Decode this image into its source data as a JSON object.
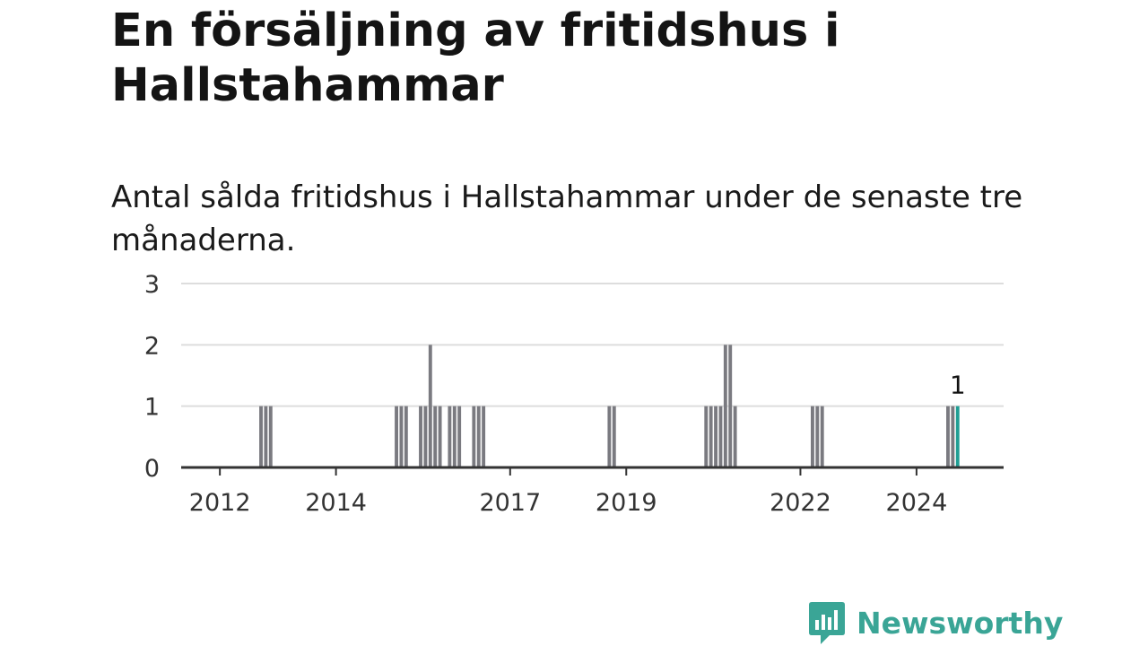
{
  "header": {
    "title": "En försäljning av fritidshus i Hallstahammar",
    "subtitle": "Antal sålda fritidshus i Hallstahammar under de senaste tre månaderna."
  },
  "brand": {
    "name": "Newsworthy",
    "color": "#3aa596",
    "icon": "newsworthy-logo-icon"
  },
  "colors": {
    "bar": "#7a7a80",
    "highlight": "#1f9e94",
    "grid": "#dddddd",
    "axis": "#333333"
  },
  "chart_data": {
    "type": "bar",
    "title": "En försäljning av fritidshus i Hallstahammar",
    "subtitle": "Antal sålda fritidshus i Hallstahammar under de senaste tre månaderna.",
    "xlabel": "",
    "ylabel": "",
    "ylim": [
      0,
      3
    ],
    "yticks": [
      0,
      1,
      2,
      3
    ],
    "xlim": [
      "2011-05",
      "2025-07"
    ],
    "xticks": [
      {
        "label": "2012",
        "date": "2012-01"
      },
      {
        "label": "2014",
        "date": "2014-01"
      },
      {
        "label": "2017",
        "date": "2017-01"
      },
      {
        "label": "2019",
        "date": "2019-01"
      },
      {
        "label": "2022",
        "date": "2022-01"
      },
      {
        "label": "2024",
        "date": "2024-01"
      }
    ],
    "grid": true,
    "series": [
      {
        "values": [
          {
            "date": "2012-09",
            "value": 1
          },
          {
            "date": "2012-10",
            "value": 1
          },
          {
            "date": "2012-11",
            "value": 1
          },
          {
            "date": "2015-01",
            "value": 1
          },
          {
            "date": "2015-02",
            "value": 1
          },
          {
            "date": "2015-03",
            "value": 1
          },
          {
            "date": "2015-06",
            "value": 1
          },
          {
            "date": "2015-07",
            "value": 1
          },
          {
            "date": "2015-08",
            "value": 2
          },
          {
            "date": "2015-09",
            "value": 1
          },
          {
            "date": "2015-10",
            "value": 1
          },
          {
            "date": "2015-12",
            "value": 1
          },
          {
            "date": "2016-01",
            "value": 1
          },
          {
            "date": "2016-02",
            "value": 1
          },
          {
            "date": "2016-05",
            "value": 1
          },
          {
            "date": "2016-06",
            "value": 1
          },
          {
            "date": "2016-07",
            "value": 1
          },
          {
            "date": "2018-09",
            "value": 1
          },
          {
            "date": "2018-10",
            "value": 1
          },
          {
            "date": "2020-05",
            "value": 1
          },
          {
            "date": "2020-06",
            "value": 1
          },
          {
            "date": "2020-07",
            "value": 1
          },
          {
            "date": "2020-08",
            "value": 1
          },
          {
            "date": "2020-09",
            "value": 2
          },
          {
            "date": "2020-10",
            "value": 2
          },
          {
            "date": "2020-11",
            "value": 1
          },
          {
            "date": "2022-03",
            "value": 1
          },
          {
            "date": "2022-04",
            "value": 1
          },
          {
            "date": "2022-05",
            "value": 1
          },
          {
            "date": "2024-07",
            "value": 1
          },
          {
            "date": "2024-08",
            "value": 1
          },
          {
            "date": "2024-09",
            "value": 1,
            "highlight": true,
            "label": "1"
          }
        ]
      }
    ]
  }
}
